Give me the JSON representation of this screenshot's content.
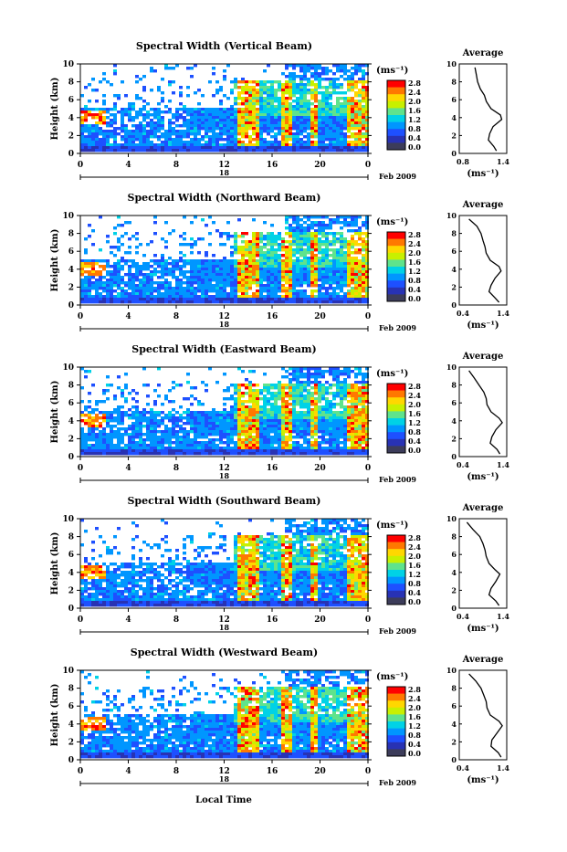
{
  "xlabel": "Local Time",
  "date_label": "Feb 2009",
  "date_day": "18",
  "colorbar": {
    "unit": "(ms⁻¹)",
    "ticks": [
      "2.8",
      "2.4",
      "2.0",
      "1.6",
      "1.2",
      "0.8",
      "0.4",
      "0.0"
    ],
    "colors": [
      "#ff0000",
      "#ff7800",
      "#ffd700",
      "#c8f000",
      "#5fe38c",
      "#00d2e6",
      "#0096ff",
      "#1e50ff",
      "#2832b4",
      "#3c3c5a"
    ]
  },
  "chart_data": [
    {
      "type": "heatmap",
      "title": "Spectral Width (Vertical Beam)",
      "ylabel": "Height (km)",
      "x_ticks": [
        "0",
        "4",
        "8",
        "12",
        "16",
        "20",
        "0"
      ],
      "xlim": [
        0,
        24
      ],
      "y_ticks": [
        "0",
        "2",
        "4",
        "6",
        "8",
        "10"
      ],
      "ylim": [
        0,
        10
      ],
      "profile": {
        "title": "Average",
        "xlabel": "(ms⁻¹)",
        "x_ticks": [
          "0.8",
          "1.4"
        ],
        "y_ticks": [
          "0",
          "2",
          "4",
          "6",
          "8",
          "10"
        ],
        "xlim": [
          0.8,
          1.4
        ],
        "heights": [
          0.3,
          0.8,
          1.5,
          2.2,
          3.0,
          3.8,
          4.3,
          5.0,
          5.8,
          6.5,
          7.2,
          8.0,
          8.8,
          9.6
        ],
        "values": [
          1.3,
          1.26,
          1.18,
          1.2,
          1.25,
          1.38,
          1.36,
          1.22,
          1.15,
          1.12,
          1.06,
          1.02,
          1.0,
          0.98
        ]
      }
    },
    {
      "type": "heatmap",
      "title": "Spectral Width (Northward Beam)",
      "ylabel": "Height (km)",
      "x_ticks": [
        "0",
        "4",
        "8",
        "12",
        "16",
        "20",
        "0"
      ],
      "xlim": [
        0,
        24
      ],
      "y_ticks": [
        "0",
        "2",
        "4",
        "6",
        "8",
        "10"
      ],
      "ylim": [
        0,
        10
      ],
      "profile": {
        "title": "Average",
        "xlabel": "(ms⁻¹)",
        "x_ticks": [
          "0.4",
          "1.4"
        ],
        "y_ticks": [
          "0",
          "2",
          "4",
          "6",
          "8",
          "10"
        ],
        "xlim": [
          0.4,
          1.4
        ],
        "heights": [
          0.3,
          0.8,
          1.5,
          2.2,
          3.0,
          3.8,
          4.3,
          5.0,
          5.8,
          6.5,
          7.2,
          8.0,
          8.8,
          9.6
        ],
        "values": [
          1.3,
          1.2,
          1.05,
          1.1,
          1.2,
          1.35,
          1.3,
          1.08,
          0.98,
          0.95,
          0.9,
          0.85,
          0.75,
          0.55
        ]
      }
    },
    {
      "type": "heatmap",
      "title": "Spectral Width (Eastward Beam)",
      "ylabel": "Height (km)",
      "x_ticks": [
        "0",
        "4",
        "8",
        "12",
        "16",
        "20",
        "0"
      ],
      "xlim": [
        0,
        24
      ],
      "y_ticks": [
        "0",
        "2",
        "4",
        "6",
        "8",
        "10"
      ],
      "ylim": [
        0,
        10
      ],
      "profile": {
        "title": "Average",
        "xlabel": "(ms⁻¹)",
        "x_ticks": [
          "0.4",
          "1.4"
        ],
        "y_ticks": [
          "0",
          "2",
          "4",
          "6",
          "8",
          "10"
        ],
        "xlim": [
          0.4,
          1.4
        ],
        "heights": [
          0.3,
          0.8,
          1.5,
          2.2,
          3.0,
          3.8,
          4.3,
          5.0,
          5.8,
          6.5,
          7.2,
          8.0,
          8.8,
          9.6
        ],
        "values": [
          1.32,
          1.25,
          1.08,
          1.12,
          1.22,
          1.38,
          1.3,
          1.1,
          1.0,
          0.98,
          0.92,
          0.8,
          0.68,
          0.55
        ]
      }
    },
    {
      "type": "heatmap",
      "title": "Spectral Width (Southward Beam)",
      "ylabel": "Height (km)",
      "x_ticks": [
        "0",
        "4",
        "8",
        "12",
        "16",
        "20",
        "0"
      ],
      "xlim": [
        0,
        24
      ],
      "y_ticks": [
        "0",
        "2",
        "4",
        "6",
        "8",
        "10"
      ],
      "ylim": [
        0,
        10
      ],
      "profile": {
        "title": "Average",
        "xlabel": "(ms⁻¹)",
        "x_ticks": [
          "0.4",
          "1.4"
        ],
        "y_ticks": [
          "0",
          "2",
          "4",
          "6",
          "8",
          "10"
        ],
        "xlim": [
          0.4,
          1.4
        ],
        "heights": [
          0.3,
          0.8,
          1.5,
          2.2,
          3.0,
          3.8,
          4.3,
          5.0,
          5.8,
          6.5,
          7.2,
          8.0,
          8.8,
          9.6
        ],
        "values": [
          1.3,
          1.22,
          1.05,
          1.1,
          1.22,
          1.32,
          1.2,
          1.05,
          0.98,
          0.95,
          0.9,
          0.82,
          0.65,
          0.5
        ]
      }
    },
    {
      "type": "heatmap",
      "title": "Spectral Width (Westward Beam)",
      "ylabel": "Height (km)",
      "x_ticks": [
        "0",
        "4",
        "8",
        "12",
        "16",
        "20",
        "0"
      ],
      "xlim": [
        0,
        24
      ],
      "y_ticks": [
        "0",
        "2",
        "4",
        "6",
        "8",
        "10"
      ],
      "ylim": [
        0,
        10
      ],
      "profile": {
        "title": "Average",
        "xlabel": "(ms⁻¹)",
        "x_ticks": [
          "0.4",
          "1.4"
        ],
        "y_ticks": [
          "0",
          "2",
          "4",
          "6",
          "8",
          "10"
        ],
        "xlim": [
          0.4,
          1.4
        ],
        "heights": [
          0.3,
          0.8,
          1.5,
          2.2,
          3.0,
          3.8,
          4.3,
          5.0,
          5.8,
          6.5,
          7.2,
          8.0,
          8.8,
          9.6
        ],
        "values": [
          1.35,
          1.28,
          1.1,
          1.12,
          1.25,
          1.38,
          1.3,
          1.08,
          1.0,
          0.98,
          0.92,
          0.85,
          0.72,
          0.55
        ]
      }
    }
  ]
}
